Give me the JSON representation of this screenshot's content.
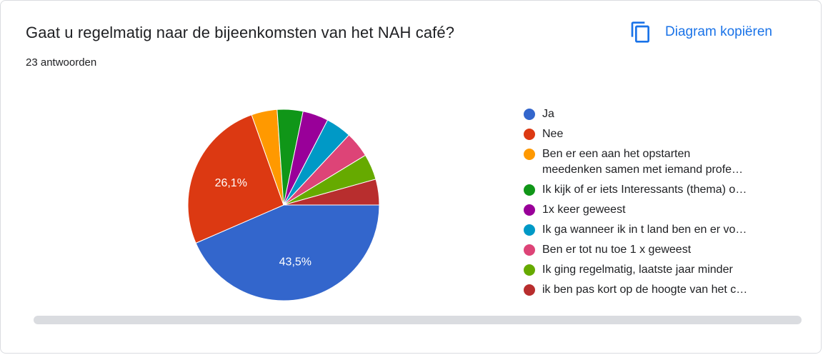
{
  "header": {
    "title": "Gaat u regelmatig naar de bijeenkomsten van het NAH café?",
    "response_count": "23 antwoorden",
    "copy_label": "Diagram kopiëren",
    "copy_icon": "copy-icon"
  },
  "colors": {
    "accent": "#1a73e8"
  },
  "chart_data": {
    "type": "pie",
    "total": 23,
    "series": [
      {
        "name": "Ja",
        "value": 10,
        "percent_label": "43,5%",
        "color": "#3366cc"
      },
      {
        "name": "Nee",
        "value": 6,
        "percent_label": "26,1%",
        "color": "#dc3912"
      },
      {
        "name": "Ben er een aan het opstarten meedenken samen met iemand profe…",
        "value": 1,
        "percent_label": "",
        "color": "#ff9900"
      },
      {
        "name": "Ik kijk of er iets Interessants (thema) o…",
        "value": 1,
        "percent_label": "",
        "color": "#109618"
      },
      {
        "name": "1x keer geweest",
        "value": 1,
        "percent_label": "",
        "color": "#990099"
      },
      {
        "name": "Ik ga wanneer ik in t land ben en er vo…",
        "value": 1,
        "percent_label": "",
        "color": "#0099c6"
      },
      {
        "name": "Ben er tot nu toe 1 x geweest",
        "value": 1,
        "percent_label": "",
        "color": "#dd4477"
      },
      {
        "name": "Ik ging regelmatig, laatste jaar minder",
        "value": 1,
        "percent_label": "",
        "color": "#66aa00"
      },
      {
        "name": "ik ben pas kort op de hoogte van het c…",
        "value": 1,
        "percent_label": "",
        "color": "#b82e2e"
      }
    ],
    "legend_position": "right",
    "legend_wrapped": {
      "2": [
        "Ben er een aan het opstarten",
        "meedenken samen met iemand profe…"
      ]
    }
  }
}
